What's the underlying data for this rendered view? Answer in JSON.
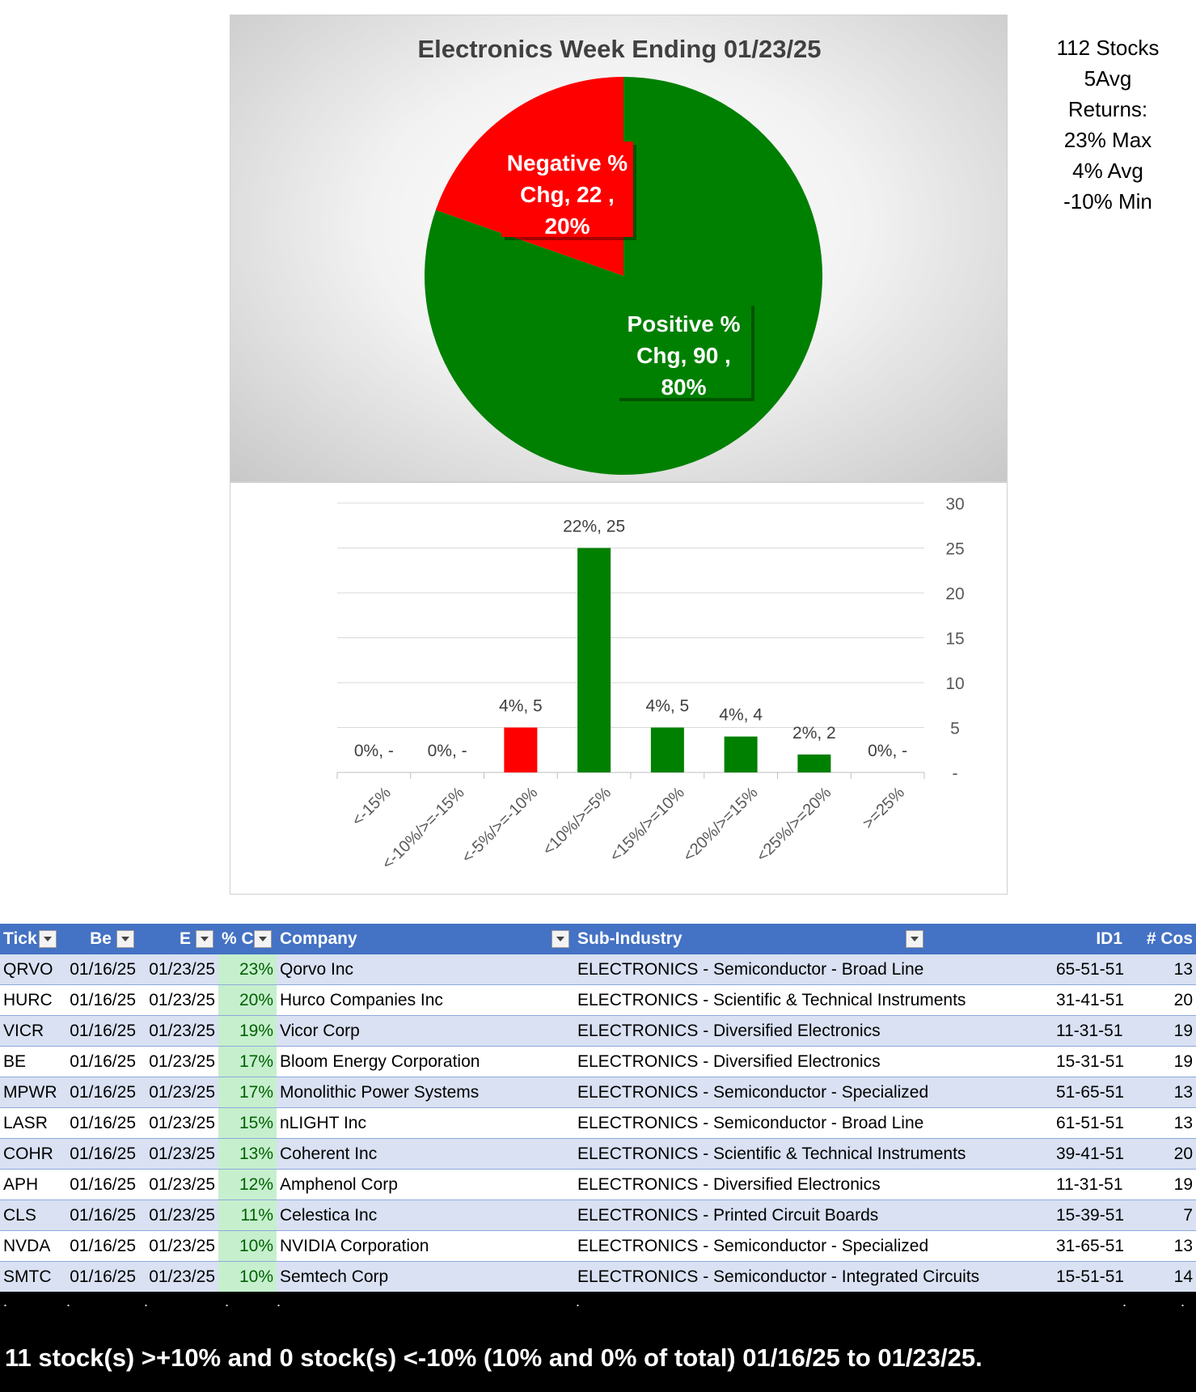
{
  "chart_data": [
    {
      "type": "pie",
      "title": "Electronics Week Ending 01/23/25",
      "slices": [
        {
          "label_line1": "Negative %",
          "label_line2": "Chg,  22 ,",
          "label_line3": "20%",
          "name": "Negative % Chg",
          "value": 22,
          "percent": "20%",
          "color": "#ff0000"
        },
        {
          "label_line1": "Positive %",
          "label_line2": "Chg,  90 ,",
          "label_line3": "80%",
          "name": "Positive % Chg",
          "value": 90,
          "percent": "80%",
          "color": "#008000"
        }
      ]
    },
    {
      "type": "bar",
      "categories": [
        "<-15%",
        "<-10%/>=-15%",
        "<-5%/>=-10%",
        "<10%/>=5%",
        "<15%/>=10%",
        "<20%/>=15%",
        "<25%/>=20%",
        ">=25%"
      ],
      "values": [
        0,
        0,
        5,
        25,
        5,
        4,
        2,
        0
      ],
      "data_labels": [
        "0%,  -",
        "0%,  -",
        "4%,  5",
        "22%,  25",
        "4%,  5",
        "4%,  4",
        "2%,  2",
        "0%,  -"
      ],
      "colors": [
        "#ff0000",
        "#ff0000",
        "#ff0000",
        "#008000",
        "#008000",
        "#008000",
        "#008000",
        "#008000"
      ],
      "ylim": [
        0,
        30
      ],
      "yticks": [
        {
          "value": 0,
          "label": "-"
        },
        {
          "value": 5,
          "label": "5"
        },
        {
          "value": 10,
          "label": "10"
        },
        {
          "value": 15,
          "label": "15"
        },
        {
          "value": 20,
          "label": "20"
        },
        {
          "value": 25,
          "label": "25"
        },
        {
          "value": 30,
          "label": "30"
        }
      ],
      "grid": true
    }
  ],
  "stats": [
    "112 Stocks",
    "5Avg",
    "Returns:",
    "23% Max",
    "4% Avg",
    "-10% Min"
  ],
  "table": {
    "headers": [
      "Tick",
      "Be",
      "E",
      "% C",
      "Company",
      "Sub-Industry",
      "ID1",
      "# Cos"
    ],
    "rows": [
      [
        "QRVO",
        "01/16/25",
        "01/23/25",
        "23%",
        "Qorvo Inc",
        "ELECTRONICS - Semiconductor - Broad Line",
        "65-51-51",
        "13"
      ],
      [
        "HURC",
        "01/16/25",
        "01/23/25",
        "20%",
        "Hurco Companies Inc",
        "ELECTRONICS - Scientific & Technical Instruments",
        "31-41-51",
        "20"
      ],
      [
        "VICR",
        "01/16/25",
        "01/23/25",
        "19%",
        "Vicor Corp",
        "ELECTRONICS - Diversified Electronics",
        "11-31-51",
        "19"
      ],
      [
        "BE",
        "01/16/25",
        "01/23/25",
        "17%",
        "Bloom Energy Corporation",
        "ELECTRONICS - Diversified Electronics",
        "15-31-51",
        "19"
      ],
      [
        "MPWR",
        "01/16/25",
        "01/23/25",
        "17%",
        "Monolithic Power Systems",
        "ELECTRONICS - Semiconductor - Specialized",
        "51-65-51",
        "13"
      ],
      [
        "LASR",
        "01/16/25",
        "01/23/25",
        "15%",
        "nLIGHT Inc",
        "ELECTRONICS - Semiconductor - Broad Line",
        "61-51-51",
        "13"
      ],
      [
        "COHR",
        "01/16/25",
        "01/23/25",
        "13%",
        "Coherent Inc",
        "ELECTRONICS - Scientific & Technical Instruments",
        "39-41-51",
        "20"
      ],
      [
        "APH",
        "01/16/25",
        "01/23/25",
        "12%",
        "Amphenol Corp",
        "ELECTRONICS - Diversified Electronics",
        "11-31-51",
        "19"
      ],
      [
        "CLS",
        "01/16/25",
        "01/23/25",
        "11%",
        "Celestica Inc",
        "ELECTRONICS - Printed Circuit Boards",
        "15-39-51",
        "7"
      ],
      [
        "NVDA",
        "01/16/25",
        "01/23/25",
        "10%",
        "NVIDIA Corporation",
        "ELECTRONICS - Semiconductor - Specialized",
        "31-65-51",
        "13"
      ],
      [
        "SMTC",
        "01/16/25",
        "01/23/25",
        "10%",
        "Semtech Corp",
        "ELECTRONICS - Semiconductor - Integrated Circuits",
        "15-51-51",
        "14"
      ]
    ]
  },
  "footer": {
    "dots": [
      ".",
      ".",
      ".",
      ".",
      ".",
      ".",
      ".",
      "."
    ],
    "summary": "11 stock(s) >+10% and 0 stock(s) <-10% (10% and 0% of total) 01/16/25 to 01/23/25."
  }
}
